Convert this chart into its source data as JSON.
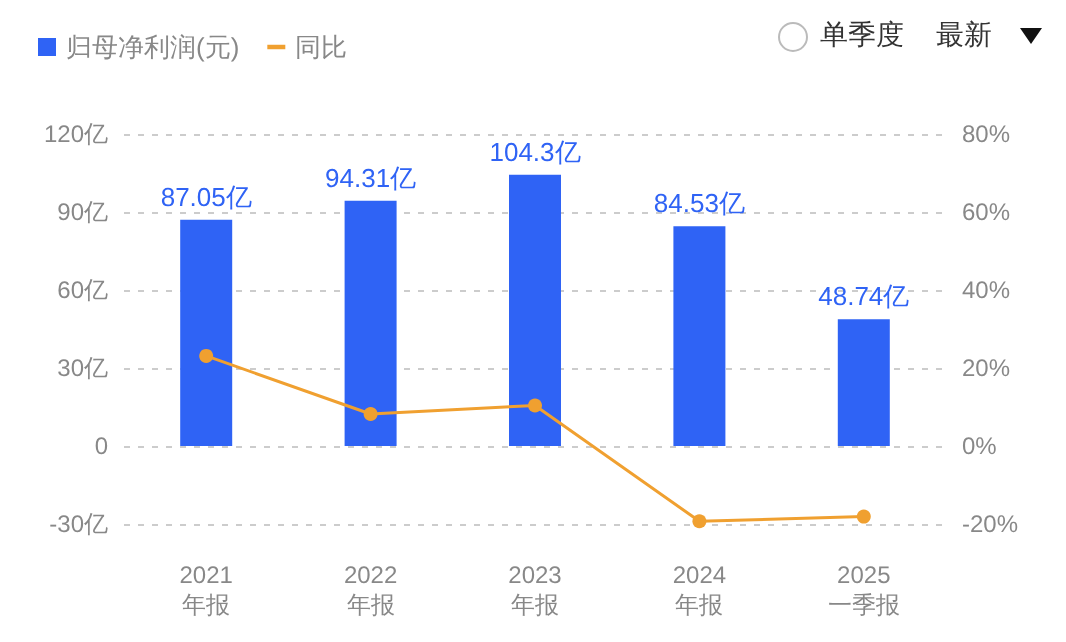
{
  "chart_data": {
    "type": "bar",
    "categories": [
      "2021\n年报",
      "2022\n年报",
      "2023\n年报",
      "2024\n年报",
      "2025\n一季报"
    ],
    "series": [
      {
        "name": "归母净利润(元)",
        "color": "#2f63f5",
        "values": [
          87.05,
          94.31,
          104.3,
          84.53,
          48.74
        ],
        "value_labels": [
          "87.05亿",
          "94.31亿",
          "104.3亿",
          "84.53亿",
          "48.74亿"
        ]
      },
      {
        "name": "同比",
        "type": "line",
        "axis": "y2",
        "color": "#f0a030",
        "values": [
          23.1,
          8.2,
          10.4,
          -19.3,
          -18.1
        ]
      }
    ],
    "ylim": [
      -30,
      120
    ],
    "yticks": [
      {
        "value": -30,
        "label": "-30亿"
      },
      0,
      {
        "value": 30,
        "label": "30亿"
      },
      {
        "value": 60,
        "label": "60亿"
      },
      {
        "value": 90,
        "label": "90亿"
      },
      {
        "value": 120,
        "label": "120亿"
      }
    ],
    "y2lim": [
      -20,
      80
    ],
    "y2ticks": [
      {
        "value": -20,
        "label": "-20%"
      },
      {
        "value": 0,
        "label": "0%"
      },
      {
        "value": 20,
        "label": "20%"
      },
      {
        "value": 40,
        "label": "40%"
      },
      {
        "value": 60,
        "label": "60%"
      },
      {
        "value": 80,
        "label": "80%"
      }
    ],
    "grid": "y",
    "legend": "top left",
    "marker": "circle",
    "line_style": "solid",
    "annotations": [
      "单季度",
      "最新"
    ]
  }
}
